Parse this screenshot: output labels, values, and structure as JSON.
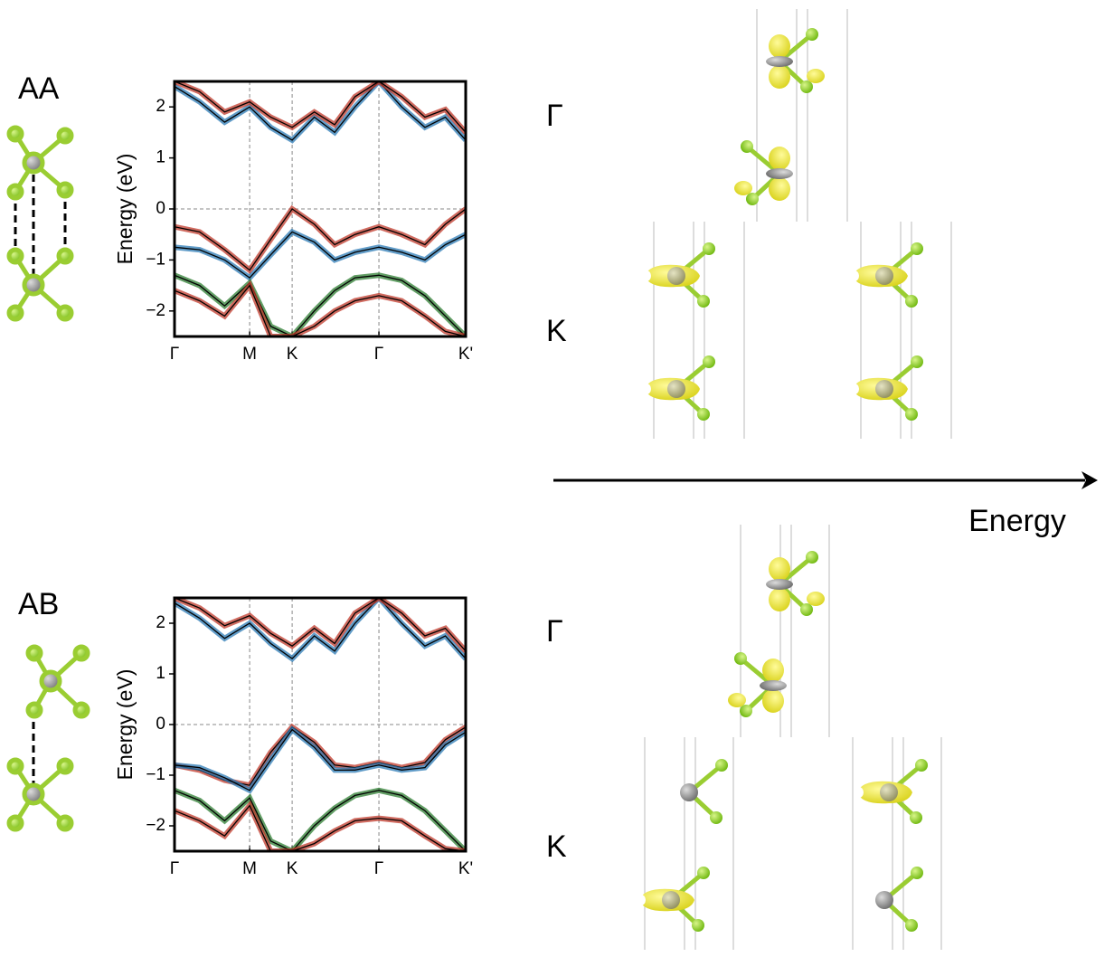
{
  "panels": [
    {
      "label": "AA",
      "k_labels": [
        "Γ",
        "K"
      ]
    },
    {
      "label": "AB",
      "k_labels": [
        "Γ",
        "K"
      ]
    }
  ],
  "arrow_label": "Energy",
  "chart_data": [
    {
      "type": "line",
      "ylabel": "Energy (eV)",
      "x": [
        0,
        0.086,
        0.172,
        0.258,
        0.33,
        0.404,
        0.48,
        0.55,
        0.62,
        0.702,
        0.78,
        0.86,
        0.93,
        1.0
      ],
      "xlim": [
        0,
        1
      ],
      "ylim": [
        -2.5,
        2.5
      ],
      "xticks": [
        {
          "value": 0,
          "label": "Γ"
        },
        {
          "value": 0.258,
          "label": "M"
        },
        {
          "value": 0.404,
          "label": "K"
        },
        {
          "value": 0.702,
          "label": "Γ"
        },
        {
          "value": 1.0,
          "label": "K'"
        }
      ],
      "yticks": [
        {
          "value": -2,
          "label": "−2"
        },
        {
          "value": -1,
          "label": "−1"
        },
        0,
        1,
        2
      ],
      "grid": "x",
      "hlines": [
        0
      ],
      "series": [
        {
          "color": "#2c7bb6",
          "values": [
            2.4,
            2.1,
            1.7,
            2.0,
            1.6,
            1.35,
            1.8,
            1.5,
            2.0,
            2.5,
            2.0,
            1.6,
            1.8,
            1.35
          ]
        },
        {
          "color": "#c0392b",
          "values": [
            2.5,
            2.3,
            1.9,
            2.1,
            1.8,
            1.6,
            1.9,
            1.65,
            2.2,
            2.5,
            2.2,
            1.8,
            1.95,
            1.5
          ]
        },
        {
          "color": "#c0392b",
          "values": [
            -0.35,
            -0.45,
            -0.8,
            -1.2,
            -0.6,
            0,
            -0.3,
            -0.7,
            -0.5,
            -0.35,
            -0.5,
            -0.7,
            -0.3,
            0
          ]
        },
        {
          "color": "#2c7bb6",
          "values": [
            -0.75,
            -0.8,
            -1.0,
            -1.35,
            -0.9,
            -0.45,
            -0.65,
            -1.0,
            -0.85,
            -0.75,
            -0.85,
            -1.0,
            -0.7,
            -0.5
          ]
        },
        {
          "color": "#2e7d32",
          "values": [
            -1.3,
            -1.5,
            -1.9,
            -1.45,
            -2.3,
            -2.5,
            -2.0,
            -1.6,
            -1.35,
            -1.3,
            -1.4,
            -1.7,
            -2.1,
            -2.5
          ]
        },
        {
          "color": "#c0392b",
          "values": [
            -1.6,
            -1.8,
            -2.1,
            -1.5,
            -2.5,
            -2.5,
            -2.3,
            -2.0,
            -1.8,
            -1.7,
            -1.8,
            -2.1,
            -2.4,
            -2.5
          ]
        }
      ]
    },
    {
      "type": "line",
      "ylabel": "Energy (eV)",
      "x": [
        0,
        0.086,
        0.172,
        0.258,
        0.33,
        0.404,
        0.48,
        0.55,
        0.62,
        0.702,
        0.78,
        0.86,
        0.93,
        1.0
      ],
      "xlim": [
        0,
        1
      ],
      "ylim": [
        -2.5,
        2.5
      ],
      "xticks": [
        {
          "value": 0,
          "label": "Γ"
        },
        {
          "value": 0.258,
          "label": "M"
        },
        {
          "value": 0.404,
          "label": "K"
        },
        {
          "value": 0.702,
          "label": "Γ"
        },
        {
          "value": 1.0,
          "label": "K'"
        }
      ],
      "yticks": [
        {
          "value": -2,
          "label": "−2"
        },
        {
          "value": -1,
          "label": "−1"
        },
        0,
        1,
        2
      ],
      "grid": "x",
      "hlines": [
        0
      ],
      "series": [
        {
          "color": "#2c7bb6",
          "values": [
            2.4,
            2.1,
            1.7,
            2.0,
            1.6,
            1.3,
            1.75,
            1.45,
            2.0,
            2.5,
            2.0,
            1.55,
            1.75,
            1.3
          ]
        },
        {
          "color": "#c0392b",
          "values": [
            2.5,
            2.3,
            1.95,
            2.15,
            1.8,
            1.55,
            1.9,
            1.6,
            2.2,
            2.5,
            2.2,
            1.75,
            1.9,
            1.45
          ]
        },
        {
          "color": "#c0392b",
          "values": [
            -0.8,
            -0.9,
            -1.1,
            -1.2,
            -0.55,
            -0.05,
            -0.35,
            -0.8,
            -0.85,
            -0.75,
            -0.85,
            -0.75,
            -0.3,
            -0.05
          ]
        },
        {
          "color": "#2c7bb6",
          "values": [
            -0.8,
            -0.85,
            -1.05,
            -1.3,
            -0.7,
            -0.1,
            -0.45,
            -0.9,
            -0.9,
            -0.8,
            -0.9,
            -0.85,
            -0.4,
            -0.15
          ]
        },
        {
          "color": "#2e7d32",
          "values": [
            -1.3,
            -1.5,
            -1.9,
            -1.45,
            -2.3,
            -2.5,
            -2.0,
            -1.65,
            -1.4,
            -1.3,
            -1.4,
            -1.7,
            -2.1,
            -2.5
          ]
        },
        {
          "color": "#c0392b",
          "values": [
            -1.7,
            -1.9,
            -2.2,
            -1.6,
            -2.5,
            -2.5,
            -2.35,
            -2.1,
            -1.9,
            -1.85,
            -1.9,
            -2.2,
            -2.45,
            -2.5
          ]
        }
      ]
    }
  ]
}
